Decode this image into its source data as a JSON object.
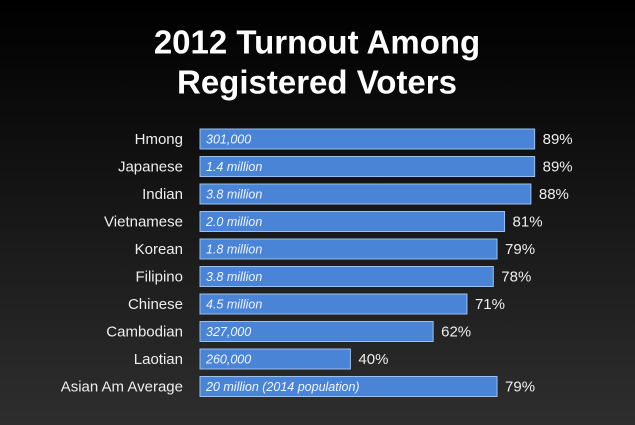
{
  "chart_data": {
    "type": "bar",
    "orientation": "horizontal",
    "title": [
      "2012 Turnout Among",
      "Registered Voters"
    ],
    "categories": [
      "Hmong",
      "Japanese",
      "Indian",
      "Vietnamese",
      "Korean",
      "Filipino",
      "Chinese",
      "Cambodian",
      "Laotian",
      "Asian Am Average"
    ],
    "values": [
      89,
      89,
      88,
      81,
      79,
      78,
      71,
      62,
      40,
      79
    ],
    "value_labels": [
      "89%",
      "89%",
      "88%",
      "81%",
      "79%",
      "78%",
      "71%",
      "62%",
      "40%",
      "79%"
    ],
    "bar_texts": [
      "301,000",
      "1.4 million",
      "3.8 million",
      "2.0 million",
      "1.8 million",
      "3.8 million",
      "4.5 million",
      "327,000",
      "260,000",
      "20 million (2014 population)"
    ],
    "color": "#4a84d6",
    "xlim": [
      0,
      100
    ]
  }
}
